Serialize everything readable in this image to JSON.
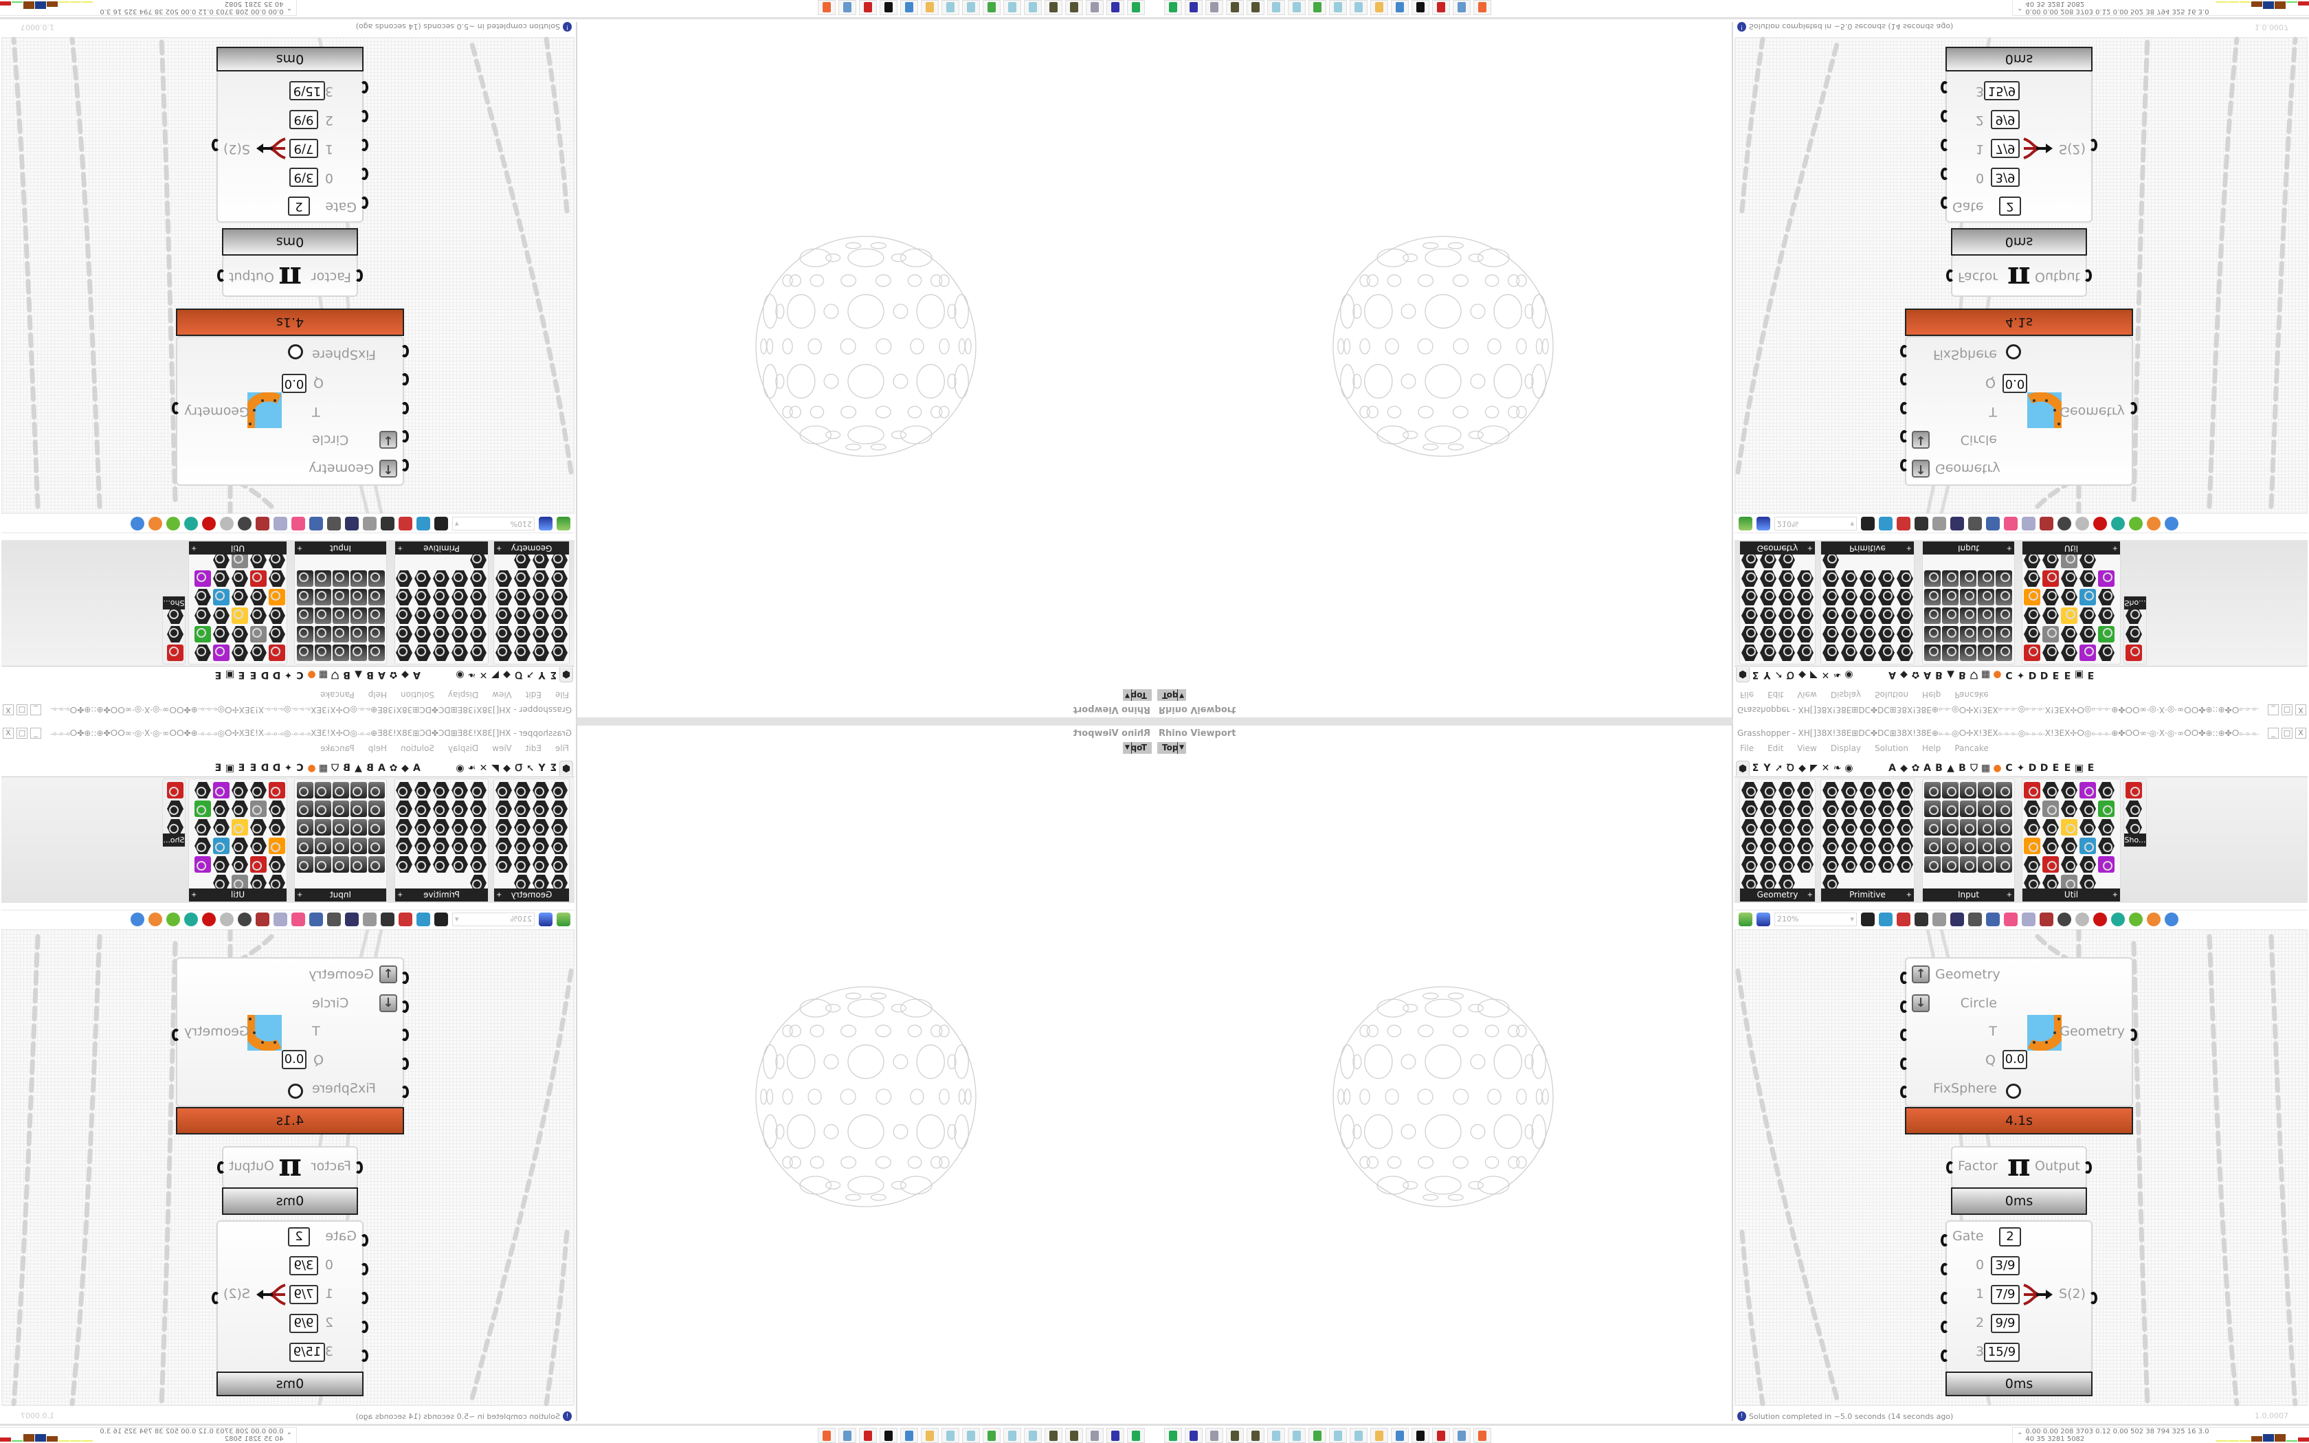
{
  "rhino": {
    "title": "Rhino Viewport",
    "view_label": "Top",
    "view_dropdown_icon": "chevron-down-icon",
    "geometry_color": "#d0d0d0"
  },
  "grasshopper": {
    "title": "Grasshopper - XH[]38X!38E⊞DC✤DC⊞38X!38E⊕⟜⟜◎ⵔ✢X!3EX⟜⟜⟜◎⟜⟜⟜X!3EX✢ⵔ◎⟜⟜⟜⊕✤ⵔⵔ∞·◎·X·◎·∞ⵔⵔ✤⊕::⊕✤ⵔ⟜⟜⟜3E]3E⟜⟜⟜ⵔ✤⊕::⊕✤ⵔⵔ∞·◎·X·◎·∞ⵔⵔ✤⊕⟜⟜⟜◎ⵔ✢X!3EX⟜⟜⟜◎⟜⟜⟜...",
    "window_buttons": [
      "_",
      "□",
      "X"
    ],
    "menu": [
      "File",
      "Edit",
      "View",
      "Display",
      "Solution",
      "Help",
      "Pancake"
    ],
    "tabs_left": [
      "⬢",
      "Σ",
      "Y",
      "➚",
      "Ꝺ",
      "◆",
      "◤",
      "✕",
      "❧",
      "◉"
    ],
    "tabs_right": [
      "A",
      "◆",
      "✿",
      "A",
      "B",
      "▲",
      "B",
      "⛉",
      "▦",
      "●",
      "C",
      "✦",
      "D",
      "D",
      "E",
      "E",
      "▣",
      "E"
    ],
    "accent_tab_color": "#f07820",
    "ribbon_panels": [
      {
        "label": "Geometry"
      },
      {
        "label": "Primitive"
      },
      {
        "label": "Input"
      },
      {
        "label": "Util"
      },
      {
        "label": "Sho..."
      }
    ],
    "toolbar": {
      "open_icon": "open-file-icon",
      "save_icon": "save-icon",
      "zoom_value": "210%",
      "icons": [
        "zoom-extents-icon",
        "preview-eye-icon",
        "sketch-icon",
        "bake-icon",
        "email-icon",
        "gha-icon",
        "window-icon",
        "search-icon",
        "package-icon",
        "bulb-icon",
        "wires-icon",
        "shade-icon",
        "wireframe-icon",
        "red-gem-icon",
        "teal-icon",
        "green-icon",
        "orange-sphere-icon",
        "blue-gem-icon"
      ]
    },
    "components": {
      "kangaroo": {
        "inputs": [
          "Geometry",
          "Circle",
          "T",
          "Q",
          "FixSphere"
        ],
        "q_value": "0.0",
        "output": "Geometry",
        "time": "4.1s",
        "time_color": "#d35a2e"
      },
      "pi": {
        "input": "Factor",
        "symbol": "π",
        "output": "Output",
        "time": "0ms"
      },
      "stream_gate": {
        "gate_label": "Gate",
        "gate_value": "2",
        "inputs": [
          {
            "index": "0",
            "value": "3/9"
          },
          {
            "index": "1",
            "value": "7/9"
          },
          {
            "index": "2",
            "value": "9/9"
          },
          {
            "index": "3",
            "value": "15/9"
          }
        ],
        "output": "S(2)",
        "time": "0ms"
      }
    },
    "status": "Solution completed in ~5.0 seconds (14 seconds ago)",
    "version": "1.0.0007"
  },
  "taskbar": {
    "apps": [
      "app-1-icon",
      "app-2-icon",
      "app-3-icon",
      "app-4-icon",
      "app-5-icon",
      "notepad-icon",
      "notepad-icon",
      "terminal-icon",
      "notepad-icon",
      "notepad-icon",
      "folder-icon",
      "app-icon",
      "inkscape-icon",
      "red-app-icon",
      "calculator-icon",
      "firefox-icon"
    ],
    "tray_text": "0.00 0.00 208 3703 0.12 0.00 502 38 794 325 16 3.0 40 35 3281 5082"
  }
}
